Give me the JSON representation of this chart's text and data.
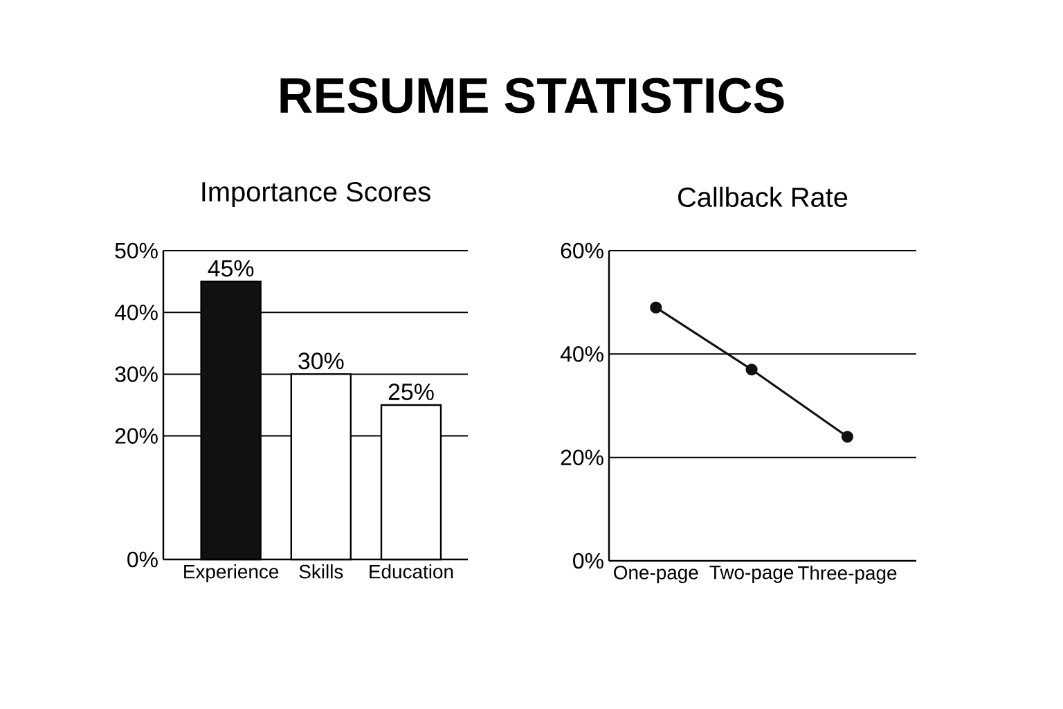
{
  "chart_data": [
    {
      "type": "other",
      "title": "RESUME STATISTICS"
    },
    {
      "type": "bar",
      "title": "Importance Scores",
      "categories": [
        "Experience",
        "Skills",
        "Education"
      ],
      "values": [
        45,
        30,
        25
      ],
      "colors": [
        "#111111",
        "#ffffff",
        "#ffffff"
      ],
      "value_labels": [
        "45%",
        "30%",
        "25%"
      ],
      "ylim": [
        0,
        50
      ],
      "yticks": [
        {
          "value": 0,
          "label": "0%"
        },
        {
          "value": 20,
          "label": "20%"
        },
        {
          "value": 30,
          "label": "30%"
        },
        {
          "value": 40,
          "label": "40%"
        },
        {
          "value": 50,
          "label": "50%"
        }
      ],
      "grid": "y"
    },
    {
      "type": "line",
      "title": "Callback Rate",
      "categories": [
        "One-page",
        "Two-page",
        "Three-page"
      ],
      "values": [
        49,
        37,
        24
      ],
      "color": "#111111",
      "marker": "circle",
      "line_style": "solid",
      "ylim": [
        0,
        60
      ],
      "yticks": [
        {
          "value": 0,
          "label": "0%"
        },
        {
          "value": 20,
          "label": "20%"
        },
        {
          "value": 40,
          "label": "40%"
        },
        {
          "value": 60,
          "label": "60%"
        }
      ],
      "grid": "y"
    }
  ]
}
